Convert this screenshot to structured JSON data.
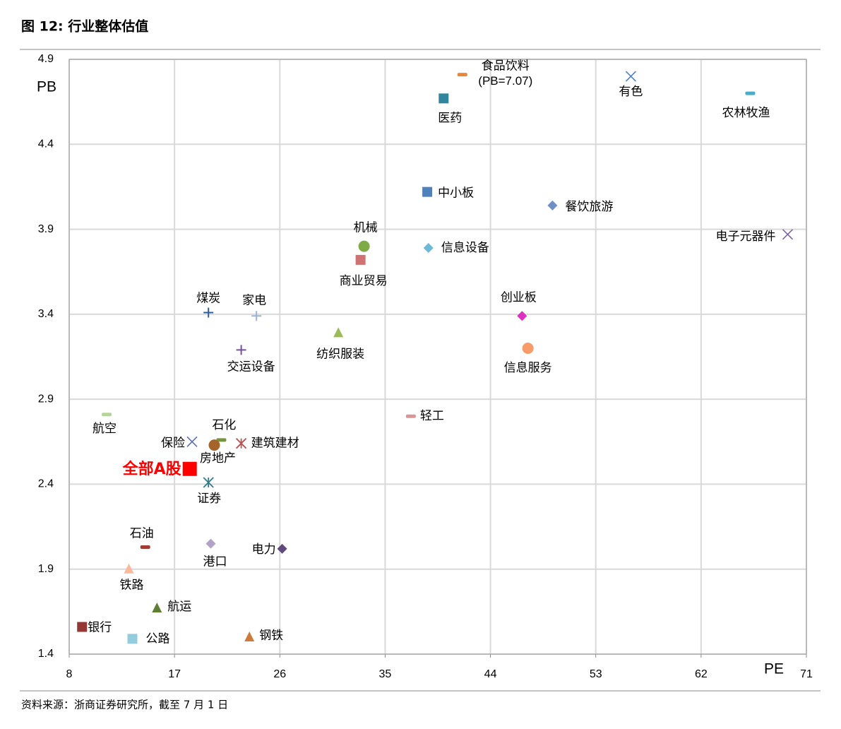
{
  "chart_data": {
    "type": "scatter",
    "title": "图 12: 行业整体估值",
    "source": "资料来源：浙商证券研究所，截至 7 月 1 日",
    "x_label": "PE",
    "y_label": "PB",
    "xlim": [
      8,
      71
    ],
    "xticks": [
      8,
      17,
      26,
      35,
      44,
      53,
      62,
      71
    ],
    "ylim": [
      1.4,
      4.9
    ],
    "yticks": [
      1.4,
      1.9,
      2.4,
      2.9,
      3.4,
      3.9,
      4.4,
      4.9
    ],
    "grid": true,
    "series": [
      {
        "name": "食品饮料",
        "note": "(PB=7.07)",
        "x": 41.6,
        "y": 4.81,
        "marker": "dash",
        "color": "#e8873a"
      },
      {
        "name": "医药",
        "x": 40.0,
        "y": 4.67,
        "marker": "square",
        "color": "#31859c"
      },
      {
        "name": "有色",
        "x": 56.0,
        "y": 4.8,
        "marker": "x",
        "color": "#4f81bd"
      },
      {
        "name": "农林牧渔",
        "x": 66.2,
        "y": 4.7,
        "marker": "dash",
        "color": "#4bacc6"
      },
      {
        "name": "中小板",
        "x": 38.6,
        "y": 4.12,
        "marker": "square",
        "color": "#4f81bd"
      },
      {
        "name": "餐饮旅游",
        "x": 49.3,
        "y": 4.04,
        "marker": "diamond",
        "color": "#6f8fc5"
      },
      {
        "name": "电子元器件",
        "x": 69.4,
        "y": 3.87,
        "marker": "x",
        "color": "#8064a2"
      },
      {
        "name": "机械",
        "x": 33.2,
        "y": 3.8,
        "marker": "circle",
        "color": "#7eab46"
      },
      {
        "name": "信息设备",
        "x": 38.7,
        "y": 3.79,
        "marker": "diamond",
        "color": "#6dbad6"
      },
      {
        "name": "商业贸易",
        "x": 32.9,
        "y": 3.72,
        "marker": "square",
        "color": "#d07272"
      },
      {
        "name": "煤炭",
        "x": 19.9,
        "y": 3.41,
        "marker": "plus",
        "color": "#2c5f9a"
      },
      {
        "name": "家电",
        "x": 24.0,
        "y": 3.39,
        "marker": "plus",
        "color": "#9bb3d4"
      },
      {
        "name": "创业板",
        "x": 46.7,
        "y": 3.39,
        "marker": "diamond",
        "color": "#e030c0"
      },
      {
        "name": "纺织服装",
        "x": 31.0,
        "y": 3.29,
        "marker": "triangle",
        "color": "#9bbb59"
      },
      {
        "name": "交运设备",
        "x": 22.7,
        "y": 3.19,
        "marker": "plus",
        "color": "#7a4ca0"
      },
      {
        "name": "信息服务",
        "x": 47.2,
        "y": 3.2,
        "marker": "circle",
        "color": "#f79b6b"
      },
      {
        "name": "航空",
        "x": 11.2,
        "y": 2.81,
        "marker": "dash",
        "color": "#b5d59b"
      },
      {
        "name": "轻工",
        "x": 37.2,
        "y": 2.8,
        "marker": "dash",
        "color": "#d99694"
      },
      {
        "name": "石化",
        "x": 21.0,
        "y": 2.66,
        "marker": "dash",
        "color": "#77933c"
      },
      {
        "name": "保险",
        "x": 18.5,
        "y": 2.65,
        "marker": "x",
        "color": "#5c6fb0"
      },
      {
        "name": "建筑建材",
        "x": 22.7,
        "y": 2.64,
        "marker": "star",
        "color": "#c0504d"
      },
      {
        "name": "房地产",
        "x": 20.4,
        "y": 2.63,
        "marker": "circle",
        "color": "#a5642b"
      },
      {
        "name": "全部A股",
        "x": 18.3,
        "y": 2.49,
        "marker": "square",
        "color": "#ff0000",
        "emphasis": true
      },
      {
        "name": "证券",
        "x": 19.9,
        "y": 2.41,
        "marker": "star",
        "color": "#2e7b8c"
      },
      {
        "name": "石油",
        "x": 14.5,
        "y": 2.03,
        "marker": "dash",
        "color": "#a33b35"
      },
      {
        "name": "港口",
        "x": 20.1,
        "y": 2.05,
        "marker": "diamond",
        "color": "#b3a2c7"
      },
      {
        "name": "电力",
        "x": 26.2,
        "y": 2.02,
        "marker": "diamond",
        "color": "#604a7b"
      },
      {
        "name": "铁路",
        "x": 13.1,
        "y": 1.9,
        "marker": "triangle",
        "color": "#f9b99b"
      },
      {
        "name": "航运",
        "x": 15.5,
        "y": 1.67,
        "marker": "triangle",
        "color": "#5e7f32"
      },
      {
        "name": "银行",
        "x": 9.1,
        "y": 1.56,
        "marker": "square",
        "color": "#953735"
      },
      {
        "name": "公路",
        "x": 13.4,
        "y": 1.49,
        "marker": "square",
        "color": "#93cddd"
      },
      {
        "name": "钢铁",
        "x": 23.4,
        "y": 1.5,
        "marker": "triangle",
        "color": "#d07a3a"
      }
    ]
  }
}
